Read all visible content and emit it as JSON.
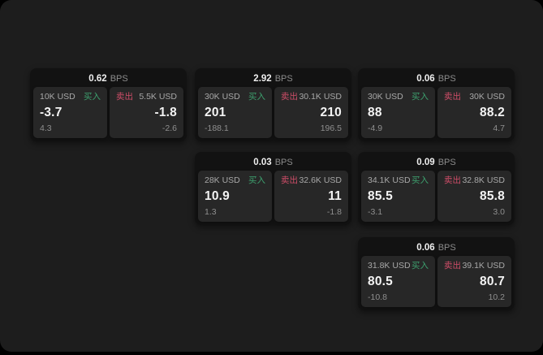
{
  "labels": {
    "buy": "买入",
    "sell": "卖出",
    "bps_suffix": "BPS"
  },
  "colors": {
    "background": "#000000",
    "panel": "#1d1d1d",
    "card": "#121212",
    "subpanel": "#272727",
    "buy_accent": "#3da06e",
    "sell_accent": "#ce4d68",
    "text_primary": "#f3f3f3",
    "text_secondary": "#8f8f8f"
  },
  "cards": [
    {
      "bps": "0.62",
      "buy": {
        "amount": "10K USD",
        "price": "-3.7",
        "delta": "4.3"
      },
      "sell": {
        "amount": "5.5K USD",
        "price": "-1.8",
        "delta": "-2.6"
      }
    },
    {
      "bps": "2.92",
      "buy": {
        "amount": "30K USD",
        "price": "201",
        "delta": "-188.1"
      },
      "sell": {
        "amount": "30.1K USD",
        "price": "210",
        "delta": "196.5"
      }
    },
    {
      "bps": "0.06",
      "buy": {
        "amount": "30K USD",
        "price": "88",
        "delta": "-4.9"
      },
      "sell": {
        "amount": "30K USD",
        "price": "88.2",
        "delta": "4.7"
      }
    },
    {
      "bps": "0.03",
      "buy": {
        "amount": "28K USD",
        "price": "10.9",
        "delta": "1.3"
      },
      "sell": {
        "amount": "32.6K USD",
        "price": "11",
        "delta": "-1.8"
      }
    },
    {
      "bps": "0.09",
      "buy": {
        "amount": "34.1K USD",
        "price": "85.5",
        "delta": "-3.1"
      },
      "sell": {
        "amount": "32.8K USD",
        "price": "85.8",
        "delta": "3.0"
      }
    },
    {
      "bps": "0.06",
      "buy": {
        "amount": "31.8K USD",
        "price": "80.5",
        "delta": "-10.8"
      },
      "sell": {
        "amount": "39.1K USD",
        "price": "80.7",
        "delta": "10.2"
      }
    }
  ]
}
